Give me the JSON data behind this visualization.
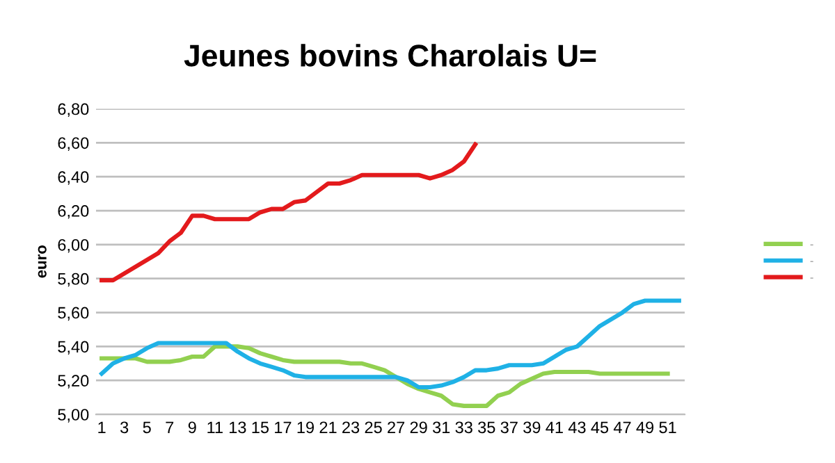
{
  "chart_data": {
    "type": "line",
    "title": "Jeunes bovins Charolais U=",
    "ylabel": "euro",
    "ylim": [
      5.0,
      6.8
    ],
    "yticks": [
      {
        "value": 5.0,
        "label": "5,00"
      },
      {
        "value": 5.2,
        "label": "5,20"
      },
      {
        "value": 5.4,
        "label": "5,40"
      },
      {
        "value": 5.6,
        "label": "5,60"
      },
      {
        "value": 5.8,
        "label": "5,80"
      },
      {
        "value": 6.0,
        "label": "6,00"
      },
      {
        "value": 6.2,
        "label": "6,20"
      },
      {
        "value": 6.4,
        "label": "6,40"
      },
      {
        "value": 6.6,
        "label": "6,60"
      },
      {
        "value": 6.8,
        "label": "6,80"
      }
    ],
    "xlim": [
      0.5,
      52.5
    ],
    "xticks": [
      1,
      3,
      5,
      7,
      9,
      11,
      13,
      15,
      17,
      19,
      21,
      23,
      25,
      27,
      29,
      31,
      33,
      35,
      37,
      39,
      41,
      43,
      45,
      47,
      49,
      51
    ],
    "grid": "y",
    "legend": "right",
    "line_style": "solid",
    "marker": "none",
    "series": [
      {
        "name": "-",
        "color": "#92d050",
        "x": [
          1,
          2,
          3,
          4,
          5,
          6,
          7,
          8,
          9,
          10,
          11,
          12,
          13,
          14,
          15,
          16,
          17,
          18,
          19,
          20,
          21,
          22,
          23,
          24,
          25,
          26,
          27,
          28,
          29,
          30,
          31,
          32,
          33,
          34,
          35,
          36,
          37,
          38,
          39,
          40,
          41,
          42,
          43,
          44,
          45,
          46,
          47,
          48,
          49,
          50,
          51
        ],
        "values": [
          5.33,
          5.33,
          5.33,
          5.33,
          5.31,
          5.31,
          5.31,
          5.32,
          5.34,
          5.34,
          5.4,
          5.4,
          5.4,
          5.39,
          5.36,
          5.34,
          5.32,
          5.31,
          5.31,
          5.31,
          5.31,
          5.31,
          5.3,
          5.3,
          5.28,
          5.26,
          5.22,
          5.18,
          5.15,
          5.13,
          5.11,
          5.06,
          5.05,
          5.05,
          5.05,
          5.11,
          5.13,
          5.18,
          5.21,
          5.24,
          5.25,
          5.25,
          5.25,
          5.25,
          5.24,
          5.24,
          5.24,
          5.24,
          5.24,
          5.24,
          5.24
        ]
      },
      {
        "name": "-",
        "color": "#1fb1e6",
        "x": [
          1,
          2,
          3,
          4,
          5,
          6,
          7,
          8,
          9,
          10,
          11,
          12,
          13,
          14,
          15,
          16,
          17,
          18,
          19,
          20,
          21,
          22,
          23,
          24,
          25,
          26,
          27,
          28,
          29,
          30,
          31,
          32,
          33,
          34,
          35,
          36,
          37,
          38,
          39,
          40,
          41,
          42,
          43,
          44,
          45,
          46,
          47,
          48,
          49,
          50,
          51,
          52
        ],
        "values": [
          5.24,
          5.3,
          5.33,
          5.35,
          5.39,
          5.42,
          5.42,
          5.42,
          5.42,
          5.42,
          5.42,
          5.42,
          5.37,
          5.33,
          5.3,
          5.28,
          5.26,
          5.23,
          5.22,
          5.22,
          5.22,
          5.22,
          5.22,
          5.22,
          5.22,
          5.22,
          5.22,
          5.2,
          5.16,
          5.16,
          5.17,
          5.19,
          5.22,
          5.26,
          5.26,
          5.27,
          5.29,
          5.29,
          5.29,
          5.3,
          5.34,
          5.38,
          5.4,
          5.46,
          5.52,
          5.56,
          5.6,
          5.65,
          5.67,
          5.67,
          5.67,
          5.67
        ]
      },
      {
        "name": "-",
        "color": "#e31a1c",
        "x": [
          1,
          2,
          3,
          4,
          5,
          6,
          7,
          8,
          9,
          10,
          11,
          12,
          13,
          14,
          15,
          16,
          17,
          18,
          19,
          20,
          21,
          22,
          23,
          24,
          25,
          26,
          27,
          28,
          29,
          30,
          31,
          32,
          33,
          34
        ],
        "values": [
          5.79,
          5.79,
          5.83,
          5.87,
          5.91,
          5.95,
          6.02,
          6.07,
          6.17,
          6.17,
          6.15,
          6.15,
          6.15,
          6.15,
          6.19,
          6.21,
          6.21,
          6.25,
          6.26,
          6.31,
          6.36,
          6.36,
          6.38,
          6.41,
          6.41,
          6.41,
          6.41,
          6.41,
          6.41,
          6.39,
          6.41,
          6.44,
          6.49,
          6.59
        ]
      }
    ]
  }
}
